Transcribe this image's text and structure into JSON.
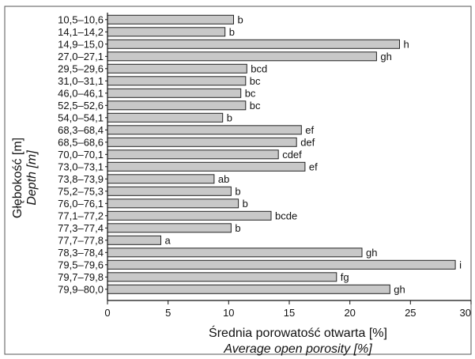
{
  "chart_data": {
    "type": "bar",
    "orientation": "horizontal",
    "categories": [
      "10,5–10,6",
      "14,1–14,2",
      "14,9–15,0",
      "27,0–27,1",
      "29,5–29,6",
      "31,0–31,1",
      "46,0–46,1",
      "52,5–52,6",
      "54,0–54,1",
      "68,3–68,4",
      "68,5–68,6",
      "70,0–70,1",
      "73,0–73,1",
      "73,8–73,9",
      "75,2–75,3",
      "76,0–76,1",
      "77,1–77,2",
      "77,3–77,4",
      "77,7–77,8",
      "78,3–78,4",
      "79,5–79,6",
      "79,7–79,8",
      "79,9–80,0"
    ],
    "values": [
      10.4,
      9.7,
      24.1,
      22.2,
      11.5,
      11.4,
      11.0,
      11.4,
      9.5,
      16.0,
      15.6,
      14.1,
      16.3,
      8.8,
      10.2,
      10.8,
      13.5,
      10.2,
      4.4,
      21.0,
      28.7,
      18.9,
      23.3
    ],
    "labels": [
      "b",
      "b",
      "h",
      "gh",
      "bcd",
      "bc",
      "bc",
      "bc",
      "b",
      "ef",
      "def",
      "cdef",
      "ef",
      "ab",
      "b",
      "b",
      "bcde",
      "b",
      "a",
      "gh",
      "i",
      "fg",
      "gh"
    ],
    "xlim": [
      0,
      30
    ],
    "xticks": [
      0,
      5,
      10,
      15,
      20,
      25,
      30
    ],
    "xtick_labels": [
      "0",
      "5",
      "10",
      "15",
      "20",
      "25",
      "30"
    ],
    "xlabel": "Średnia porowatość otwarta [%]",
    "xlabel_en": "Average open porosity [%]",
    "ylabel": "Głębokość [m]",
    "ylabel_en": "Depth [m]",
    "grid": false,
    "colors": {
      "bar_fill": "#c8c8c8",
      "bar_stroke": "#222222",
      "axis": "#111111",
      "frame": "#333333"
    }
  }
}
